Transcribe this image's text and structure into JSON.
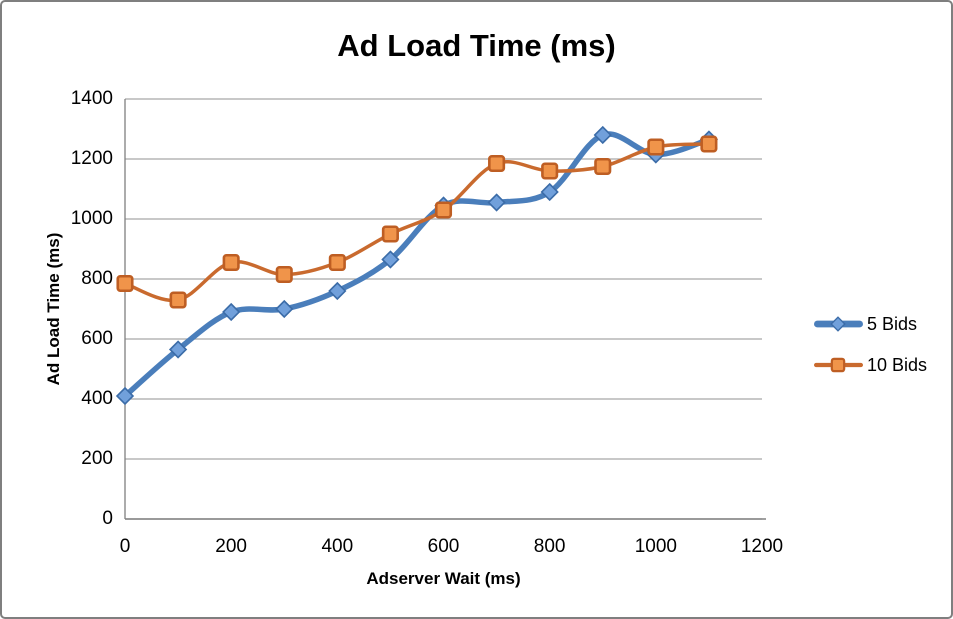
{
  "chart_data": {
    "type": "line",
    "title": "Ad Load Time (ms)",
    "xlabel": "Adserver Wait (ms)",
    "ylabel": "Ad Load Time (ms)",
    "x": [
      0,
      100,
      200,
      300,
      400,
      500,
      600,
      700,
      800,
      900,
      1000,
      1100
    ],
    "series": [
      {
        "name": "5 Bids",
        "marker": "diamond",
        "values": [
          410,
          565,
          690,
          700,
          760,
          865,
          1045,
          1055,
          1090,
          1280,
          1215,
          1265
        ],
        "line_color": "#4A7EBB",
        "line_width": 5.5,
        "marker_fill": "#71A0DB",
        "marker_stroke": "#3B6CA8"
      },
      {
        "name": "10 Bids",
        "marker": "square",
        "values": [
          785,
          730,
          855,
          815,
          855,
          950,
          1030,
          1185,
          1160,
          1175,
          1240,
          1250
        ],
        "line_color": "#C96A2E",
        "line_width": 3.5,
        "marker_fill": "#F0944A",
        "marker_stroke": "#BE5E23"
      }
    ],
    "xlim": [
      0,
      1200
    ],
    "ylim": [
      0,
      1400
    ],
    "x_ticks": [
      0,
      200,
      400,
      600,
      800,
      1000,
      1200
    ],
    "y_ticks": [
      0,
      200,
      400,
      600,
      800,
      1000,
      1200,
      1400
    ],
    "grid": true,
    "smooth": true,
    "legend_position": "right",
    "gridline_color": "#A6A6A6",
    "axis_line_color": "#808080",
    "frame_border_color": "#7F7F7F",
    "background_color": "#FFFFFF",
    "text_color": "#000000"
  }
}
